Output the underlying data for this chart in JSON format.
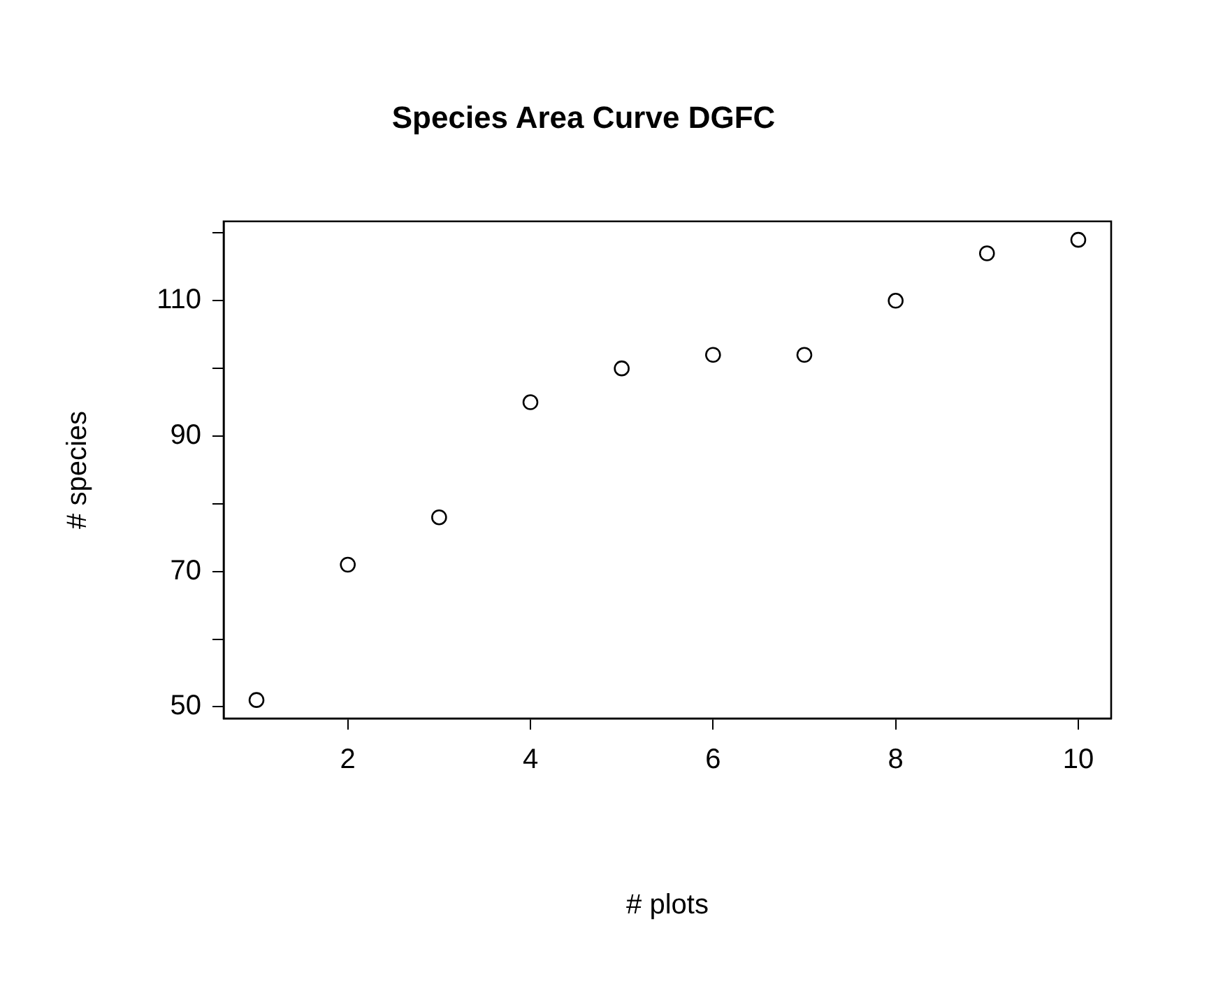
{
  "chart_data": {
    "type": "scatter",
    "title": "Species Area Curve DGFC",
    "xlabel": "# plots",
    "ylabel": "# species",
    "x": [
      1,
      2,
      3,
      4,
      5,
      6,
      7,
      8,
      9,
      10
    ],
    "series": [
      {
        "color": "#000000",
        "values": [
          51,
          71,
          78,
          95,
          100,
          102,
          102,
          110,
          117,
          119
        ]
      }
    ],
    "xlim": [
      0.64,
      10.36
    ],
    "xticks": [
      2,
      4,
      6,
      8,
      10
    ],
    "ylim": [
      48.28,
      121.72
    ],
    "yticks": [
      50,
      {
        "value": 60,
        "label": null
      },
      70,
      {
        "value": 80,
        "label": null
      },
      90,
      {
        "value": 100,
        "label": null
      },
      110,
      {
        "value": 120,
        "label": null
      }
    ],
    "marker": "circle",
    "grid": false,
    "legend": false
  }
}
